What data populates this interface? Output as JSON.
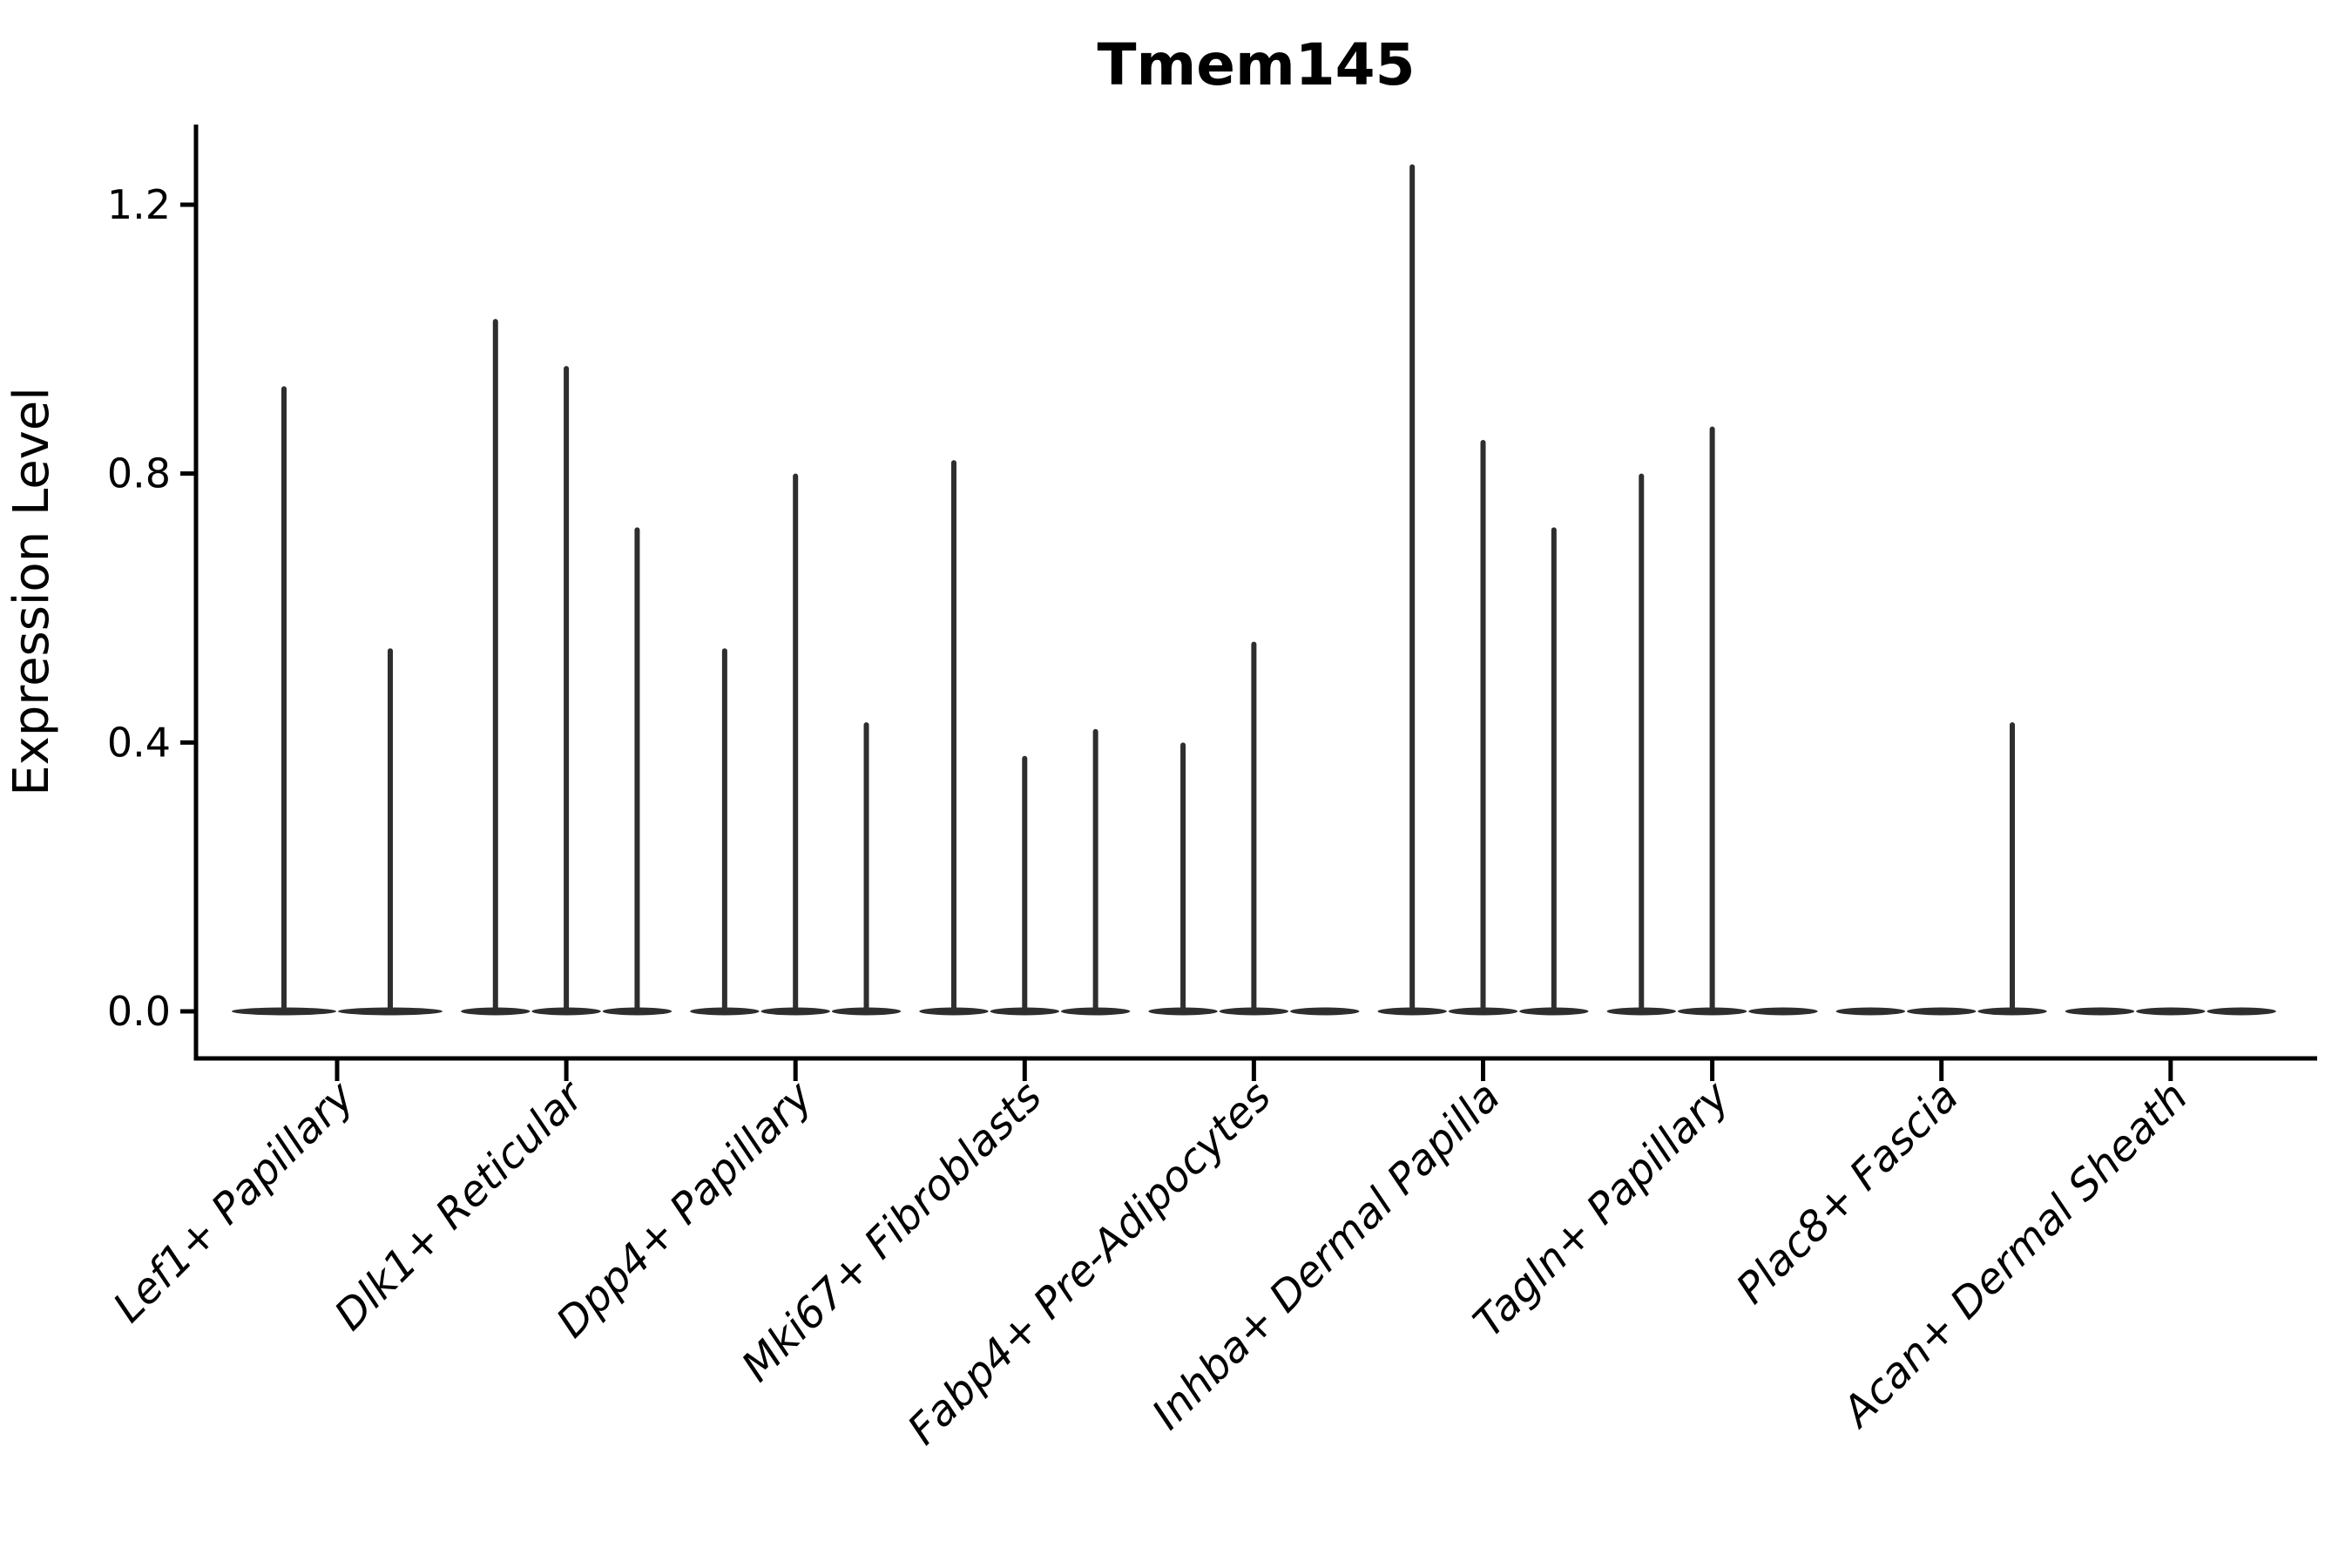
{
  "chart_data": {
    "type": "violin",
    "title": "Tmem145",
    "xlabel": "",
    "ylabel": "Expression Level",
    "ylim": [
      -0.07,
      1.32
    ],
    "yticks": [
      0.0,
      0.4,
      0.8,
      1.2
    ],
    "ytick_labels": [
      "0.0",
      "0.4",
      "0.8",
      "1.2"
    ],
    "grid": false,
    "legend": "none",
    "line_color": "#2e2e2e",
    "categories": [
      "Lef1+ Papillary",
      "Dlk1+ Reticular",
      "Dpp4+ Papillary",
      "Mki67+ Fibroblasts",
      "Fabp4+ Pre-Adipocytes",
      "Inhba+ Dermal Papilla",
      "Tagln+ Papillary",
      "Plac8+ Fascia",
      "Acan+ Dermal Sheath"
    ],
    "groups": [
      {
        "label": "Lef1+ Papillary",
        "violin_max_values": [
          0.93,
          0.54
        ]
      },
      {
        "label": "Dlk1+ Reticular",
        "violin_max_values": [
          1.03,
          0.96,
          0.72
        ]
      },
      {
        "label": "Dpp4+ Papillary",
        "violin_max_values": [
          0.54,
          0.8,
          0.43
        ]
      },
      {
        "label": "Mki67+ Fibroblasts",
        "violin_max_values": [
          0.82,
          0.38,
          0.42
        ]
      },
      {
        "label": "Fabp4+ Pre-Adipocytes",
        "violin_max_values": [
          0.4,
          0.55,
          null
        ]
      },
      {
        "label": "Inhba+ Dermal Papilla",
        "violin_max_values": [
          1.26,
          0.85,
          0.72
        ]
      },
      {
        "label": "Tagln+ Papillary",
        "violin_max_values": [
          0.8,
          0.87,
          null
        ]
      },
      {
        "label": "Plac8+ Fascia",
        "violin_max_values": [
          null,
          null,
          0.43
        ]
      },
      {
        "label": "Acan+ Dermal Sheath",
        "violin_max_values": [
          null,
          null,
          null
        ]
      }
    ],
    "description": "Violin plot of Tmem145 expression; each cell-type group contains sub-violins collapsed at 0 with thin tails up to the max expression value."
  }
}
